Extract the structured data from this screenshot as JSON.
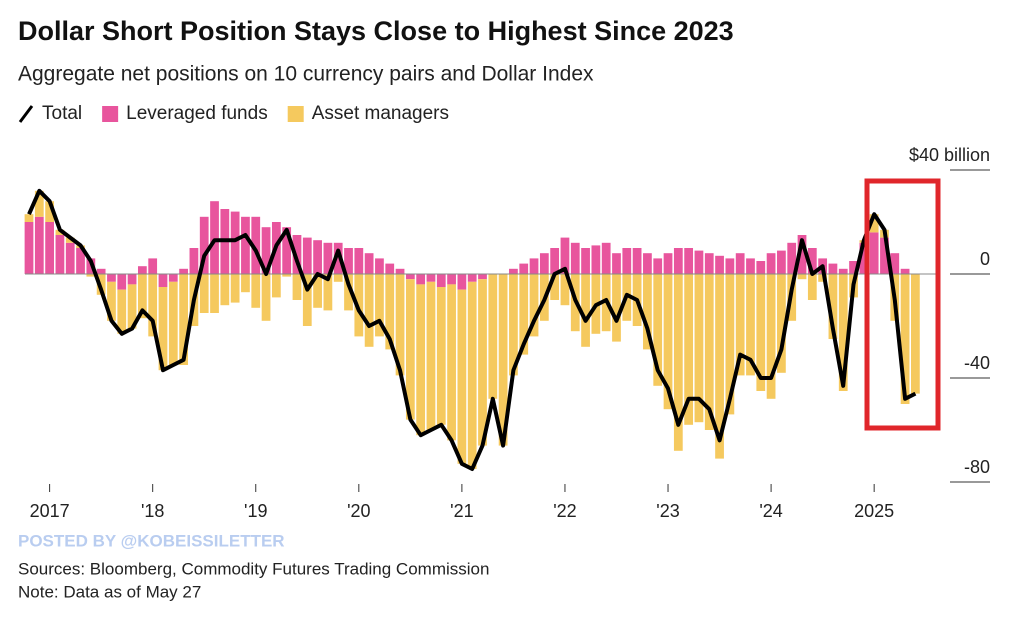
{
  "chart_data": {
    "type": "combo",
    "title": "Dollar Short Position Stays Close to Highest Since 2023",
    "subtitle": "Aggregate net positions on 10 currency pairs and Dollar Index",
    "watermark": "POSTED BY @KOBEISSILETTER",
    "source": "Sources: Bloomberg, Commodity Futures Trading Commission",
    "note": "Note: Data as of May 27",
    "x": [
      2016.8,
      2016.9,
      2017.0,
      2017.1,
      2017.2,
      2017.3,
      2017.4,
      2017.5,
      2017.6,
      2017.7,
      2017.8,
      2017.9,
      2018.0,
      2018.1,
      2018.2,
      2018.3,
      2018.4,
      2018.5,
      2018.6,
      2018.7,
      2018.8,
      2018.9,
      2019.0,
      2019.1,
      2019.2,
      2019.3,
      2019.4,
      2019.5,
      2019.6,
      2019.7,
      2019.8,
      2019.9,
      2020.0,
      2020.1,
      2020.2,
      2020.3,
      2020.4,
      2020.5,
      2020.6,
      2020.7,
      2020.8,
      2020.9,
      2021.0,
      2021.1,
      2021.2,
      2021.3,
      2021.4,
      2021.5,
      2021.6,
      2021.7,
      2021.8,
      2021.9,
      2022.0,
      2022.1,
      2022.2,
      2022.3,
      2022.4,
      2022.5,
      2022.6,
      2022.7,
      2022.8,
      2022.9,
      2023.0,
      2023.1,
      2023.2,
      2023.3,
      2023.4,
      2023.5,
      2023.6,
      2023.7,
      2023.8,
      2023.9,
      2024.0,
      2024.1,
      2024.2,
      2024.3,
      2024.4,
      2024.5,
      2024.6,
      2024.7,
      2024.8,
      2024.9,
      2025.0,
      2025.1,
      2025.2,
      2025.3,
      2025.4
    ],
    "series": [
      {
        "name": "Total",
        "type": "line",
        "color": "#000000",
        "values": [
          23,
          32,
          28,
          17,
          14,
          11,
          5,
          -6,
          -18,
          -23,
          -21,
          -14,
          -18,
          -37,
          -35,
          -33,
          -10,
          7,
          13,
          13,
          13,
          15,
          9,
          0,
          11,
          17,
          5,
          -6,
          0,
          -2,
          9,
          -4,
          -14,
          -20,
          -18,
          -25,
          -37,
          -56,
          -62,
          -60,
          -58,
          -64,
          -73,
          -75,
          -66,
          -48,
          -66,
          -37,
          -27,
          -18,
          -10,
          0,
          2,
          -10,
          -18,
          -12,
          -10,
          -18,
          -8,
          -10,
          -21,
          -37,
          -44,
          -58,
          -48,
          -48,
          -52,
          -64,
          -48,
          -31,
          -33,
          -40,
          -40,
          -29,
          -6,
          13,
          0,
          3,
          -21,
          -43,
          -4,
          13,
          23,
          17,
          -10,
          -48,
          -46
        ]
      },
      {
        "name": "Leveraged funds",
        "type": "bar",
        "color": "#e8559d",
        "values": [
          20,
          22,
          20,
          15,
          12,
          10,
          6,
          2,
          -3,
          -6,
          -4,
          3,
          6,
          -5,
          -3,
          2,
          10,
          22,
          28,
          25,
          24,
          22,
          22,
          18,
          20,
          18,
          15,
          14,
          13,
          12,
          12,
          10,
          10,
          8,
          6,
          4,
          2,
          -2,
          -4,
          -3,
          -5,
          -4,
          -6,
          -3,
          -2,
          0,
          0,
          2,
          4,
          6,
          8,
          10,
          14,
          12,
          10,
          11,
          12,
          8,
          10,
          10,
          8,
          6,
          8,
          10,
          10,
          9,
          8,
          7,
          6,
          8,
          6,
          5,
          8,
          9,
          12,
          15,
          10,
          6,
          4,
          2,
          5,
          12,
          16,
          14,
          8,
          2,
          0
        ]
      },
      {
        "name": "Asset managers",
        "type": "bar",
        "color": "#f5c95e",
        "values": [
          3,
          10,
          8,
          2,
          2,
          1,
          -1,
          -8,
          -15,
          -17,
          -17,
          -17,
          -24,
          -32,
          -32,
          -35,
          -20,
          -15,
          -15,
          -12,
          -11,
          -7,
          -13,
          -18,
          -9,
          -1,
          -10,
          -20,
          -13,
          -14,
          -3,
          -14,
          -24,
          -28,
          -24,
          -29,
          -39,
          -54,
          -58,
          -57,
          -53,
          -60,
          -67,
          -72,
          -64,
          -48,
          -66,
          -39,
          -31,
          -24,
          -18,
          -10,
          -12,
          -22,
          -28,
          -23,
          -22,
          -26,
          -18,
          -20,
          -29,
          -43,
          -52,
          -68,
          -58,
          -57,
          -60,
          -71,
          -54,
          -39,
          -39,
          -45,
          -48,
          -38,
          -18,
          -2,
          -10,
          -3,
          -25,
          -45,
          -9,
          1,
          7,
          3,
          -18,
          -50,
          -46
        ]
      }
    ],
    "xlim": [
      2016.8,
      2025.6
    ],
    "xticks": [
      {
        "value": 2017,
        "label": "2017"
      },
      {
        "value": 2018,
        "label": "'18"
      },
      {
        "value": 2019,
        "label": "'19"
      },
      {
        "value": 2020,
        "label": "'20"
      },
      {
        "value": 2021,
        "label": "'21"
      },
      {
        "value": 2022,
        "label": "'22"
      },
      {
        "value": 2023,
        "label": "'23"
      },
      {
        "value": 2024,
        "label": "'24"
      },
      {
        "value": 2025,
        "label": "2025"
      }
    ],
    "ylim": [
      -80,
      40
    ],
    "yticks": [
      {
        "value": 40,
        "label": "$40 billion"
      },
      0,
      -40,
      -80
    ]
  }
}
